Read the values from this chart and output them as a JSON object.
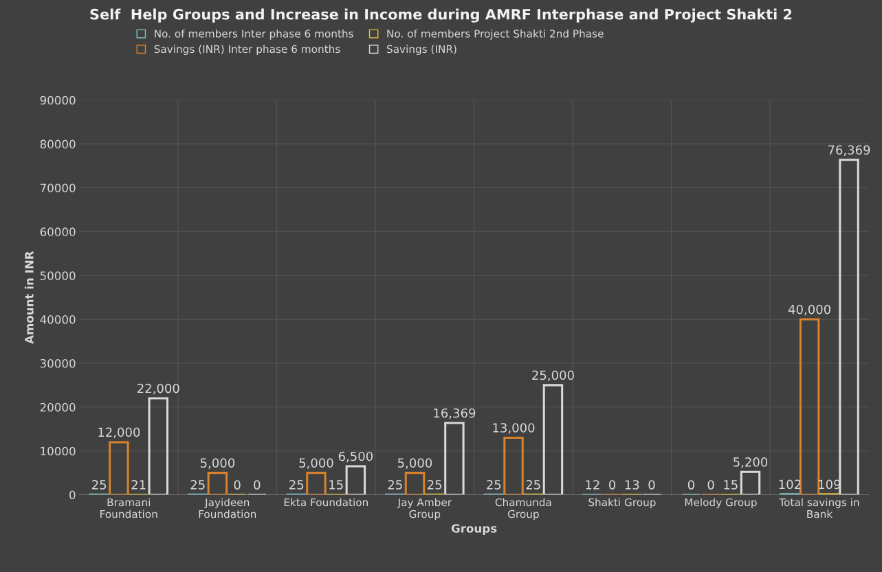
{
  "chart_data": {
    "type": "bar",
    "title": "Self  Help Groups and Increase in Income during AMRF Interphase and Project Shakti 2",
    "xlabel": "Groups",
    "ylabel": "Amount in INR",
    "categories": [
      "Bramani\nFoundation",
      "Jayideen\nFoundation",
      "Ekta Foundation",
      "Jay Amber\nGroup",
      "Chamunda\nGroup",
      "Shakti Group",
      "Melody Group",
      "Total savings in\nBank"
    ],
    "series": [
      {
        "name": "No. of members Inter phase 6 months",
        "color": "#7fc6cc",
        "values": [
          25,
          25,
          25,
          25,
          25,
          12,
          0,
          102
        ],
        "value_labels": [
          "25",
          "25",
          "25",
          "25",
          "25",
          "12",
          "0",
          "102"
        ]
      },
      {
        "name": "Savings (INR) Inter phase 6 months",
        "color": "#d9822b",
        "values": [
          12000,
          5000,
          5000,
          5000,
          13000,
          0,
          0,
          40000
        ],
        "value_labels": [
          "12,000",
          "5,000",
          "5,000",
          "5,000",
          "13,000",
          "0",
          "0",
          "40,000"
        ]
      },
      {
        "name": "No. of members Project Shakti 2nd Phase",
        "color": "#e6c32e",
        "values": [
          21,
          0,
          15,
          25,
          25,
          13,
          15,
          109
        ],
        "value_labels": [
          "21",
          "0",
          "15",
          "25",
          "25",
          "13",
          "15",
          "109"
        ]
      },
      {
        "name": "Savings (INR)",
        "color": "#d9d9d9",
        "values": [
          22000,
          0,
          6500,
          16369,
          25000,
          0,
          5200,
          76369
        ],
        "value_labels": [
          "22,000",
          "0",
          "6,500",
          "16,369",
          "25,000",
          "0",
          "5,200",
          "76,369"
        ]
      }
    ],
    "ylim": [
      0,
      90000
    ],
    "yticks": [
      0,
      10000,
      20000,
      30000,
      40000,
      50000,
      60000,
      70000,
      80000,
      90000
    ],
    "grid": true,
    "legend": "top"
  }
}
